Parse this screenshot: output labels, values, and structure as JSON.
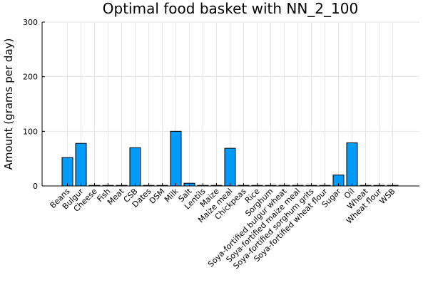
{
  "chart_data": {
    "type": "bar",
    "title": "Optimal food basket with NN_2_100",
    "xlabel": "",
    "ylabel": "Amount (grams per day)",
    "ylim": [
      0,
      300
    ],
    "yticks": [
      0,
      100,
      200,
      300
    ],
    "grid": true,
    "legend": "none",
    "bar_color": "#009af9",
    "categories": [
      "Beans",
      "Bulgur",
      "Cheese",
      "Fish",
      "Meat",
      "CSB",
      "Dates",
      "DSM",
      "Milk",
      "Salt",
      "Lentils",
      "Maize",
      "Maize meal",
      "Chickpeas",
      "Rice",
      "Sorghum",
      "Soya-fortified bulgur wheat",
      "Soya-fortified maize meal",
      "Soya-fortified sorghum grits",
      "Soya-fortified wheat flour",
      "Sugar",
      "Oil",
      "Wheat",
      "Wheat flour",
      "WSB"
    ],
    "values": [
      52,
      78,
      0,
      0,
      0,
      70,
      0,
      0,
      100,
      5,
      0,
      0,
      69,
      0,
      0,
      0,
      0,
      0,
      0,
      0,
      20,
      79,
      0,
      0,
      0
    ]
  }
}
